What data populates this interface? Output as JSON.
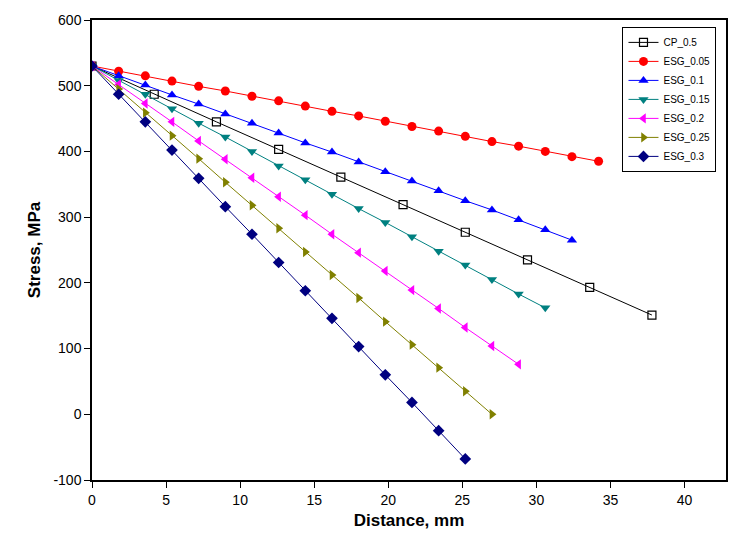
{
  "chart_data": {
    "type": "line",
    "x_label": "Distance, mm",
    "y_label": "Stress, MPa",
    "xlim": [
      0,
      42.8
    ],
    "xticks": [
      0,
      5,
      10,
      15,
      20,
      25,
      30,
      35,
      40
    ],
    "ylim": [
      -100,
      600
    ],
    "yticks": [
      -100,
      0,
      100,
      200,
      300,
      400,
      500,
      600
    ],
    "grid": false,
    "legend": "top right",
    "series": [
      {
        "name": "CP_0.5",
        "color": "#000000",
        "marker": "square-open",
        "x": [
          0,
          4.2,
          8.4,
          12.6,
          16.8,
          21,
          25.2,
          29.4,
          33.6,
          37.8
        ],
        "values": [
          530,
          487,
          445,
          403,
          361,
          319,
          277,
          235,
          193,
          151
        ]
      },
      {
        "name": "ESG_0.05",
        "color": "#ff0000",
        "marker": "circle",
        "x": [
          0,
          1.8,
          3.6,
          5.4,
          7.2,
          9,
          10.8,
          12.6,
          14.4,
          16.2,
          18,
          19.8,
          21.6,
          23.4,
          25.2,
          27,
          28.8,
          30.6,
          32.4,
          34.2
        ],
        "values": [
          530,
          522,
          515,
          507,
          499,
          492,
          484,
          477,
          469,
          461,
          454,
          446,
          438,
          431,
          423,
          415,
          408,
          400,
          392,
          385
        ]
      },
      {
        "name": "ESG_0.1",
        "color": "#0000ff",
        "marker": "triangle-up",
        "x": [
          0,
          1.8,
          3.6,
          5.4,
          7.2,
          9,
          10.8,
          12.6,
          14.4,
          16.2,
          18,
          19.8,
          21.6,
          23.4,
          25.2,
          27,
          28.8,
          30.6,
          32.4
        ],
        "values": [
          530,
          515,
          501,
          486,
          472,
          457,
          443,
          428,
          413,
          399,
          384,
          369,
          355,
          340,
          325,
          311,
          296,
          281,
          265
        ]
      },
      {
        "name": "ESG_0.15",
        "color": "#008080",
        "marker": "triangle-down",
        "x": [
          0,
          1.8,
          3.6,
          5.4,
          7.2,
          9,
          10.8,
          12.6,
          14.4,
          16.2,
          18,
          19.8,
          21.6,
          23.4,
          25.2,
          27,
          28.8,
          30.6
        ],
        "values": [
          530,
          508,
          487,
          465,
          443,
          422,
          400,
          378,
          357,
          335,
          313,
          292,
          270,
          248,
          227,
          205,
          183,
          162
        ]
      },
      {
        "name": "ESG_0.2",
        "color": "#ff00ff",
        "marker": "triangle-left",
        "x": [
          0,
          1.8,
          3.6,
          5.4,
          7.2,
          9,
          10.8,
          12.6,
          14.4,
          16.2,
          18,
          19.8,
          21.6,
          23.4,
          25.2,
          27,
          28.8
        ],
        "values": [
          530,
          502,
          473,
          445,
          416,
          388,
          360,
          331,
          303,
          274,
          246,
          218,
          189,
          161,
          132,
          104,
          76
        ]
      },
      {
        "name": "ESG_0.25",
        "color": "#808000",
        "marker": "triangle-right",
        "x": [
          0,
          1.8,
          3.6,
          5.4,
          7.2,
          9,
          10.8,
          12.6,
          14.4,
          16.2,
          18,
          19.8,
          21.6,
          23.4,
          25.2,
          27
        ],
        "values": [
          530,
          495,
          459,
          424,
          389,
          353,
          318,
          283,
          247,
          212,
          177,
          141,
          106,
          71,
          35,
          0
        ]
      },
      {
        "name": "ESG_0.3",
        "color": "#000080",
        "marker": "diamond",
        "x": [
          0,
          1.8,
          3.6,
          5.4,
          7.2,
          9,
          10.8,
          12.6,
          14.4,
          16.2,
          18,
          19.8,
          21.6,
          23.4,
          25.2
        ],
        "values": [
          530,
          487,
          445,
          402,
          359,
          316,
          274,
          231,
          188,
          146,
          103,
          60,
          18,
          -25,
          -68
        ]
      }
    ]
  }
}
